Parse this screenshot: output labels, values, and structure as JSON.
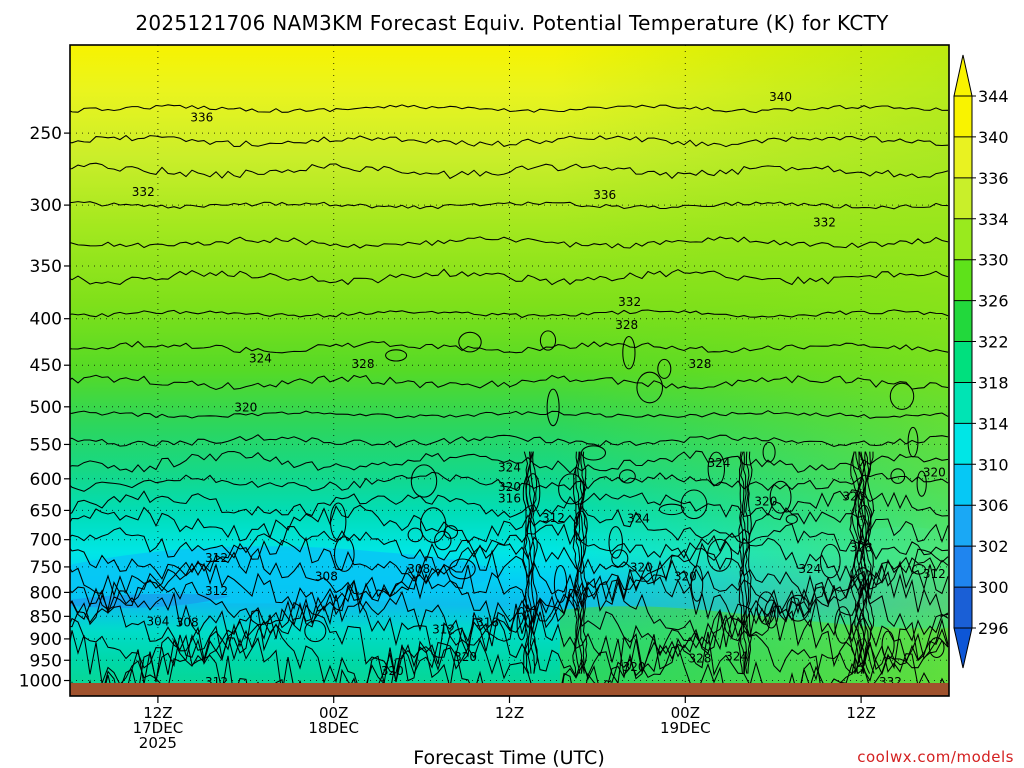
{
  "chart_data": {
    "type": "heatmap",
    "title": "2025121706 NAM3KM Forecast Equiv. Potential Temperature (K) for KCTY",
    "xlabel": "Forecast Time (UTC)",
    "ylabel": "",
    "y_axis": {
      "ticks": [
        250,
        300,
        350,
        400,
        450,
        500,
        550,
        600,
        650,
        700,
        750,
        800,
        850,
        900,
        950,
        1000
      ],
      "inverted": true,
      "scale": "log-pressure"
    },
    "x_axis": {
      "ticks": [
        {
          "hour": 6,
          "lines": [
            "12Z",
            "17DEC",
            "2025"
          ]
        },
        {
          "hour": 18,
          "lines": [
            "00Z",
            "18DEC"
          ]
        },
        {
          "hour": 30,
          "lines": [
            "12Z"
          ]
        },
        {
          "hour": 42,
          "lines": [
            "00Z",
            "19DEC"
          ]
        },
        {
          "hour": 54,
          "lines": [
            "12Z"
          ]
        }
      ],
      "xlim": [
        0,
        60
      ]
    },
    "grid": true,
    "colorbar": {
      "ticks": [
        296,
        300,
        302,
        306,
        310,
        314,
        318,
        322,
        326,
        330,
        334,
        336,
        340,
        344
      ],
      "colors": [
        "#1a5fd6",
        "#1f85ef",
        "#1aa8f5",
        "#06c8f5",
        "#00e6e6",
        "#00e4b4",
        "#00e07e",
        "#22d83c",
        "#5ee21a",
        "#99ea1e",
        "#c9ef2a",
        "#e9f221",
        "#f9f300"
      ]
    },
    "contour_labels": [
      {
        "value": "336",
        "hour": 9.0,
        "p": 240
      },
      {
        "value": "340",
        "hour": 48.5,
        "p": 228
      },
      {
        "value": "332",
        "hour": 5.0,
        "p": 290
      },
      {
        "value": "336",
        "hour": 36.5,
        "p": 292
      },
      {
        "value": "332",
        "hour": 51.5,
        "p": 313
      },
      {
        "value": "332",
        "hour": 38.2,
        "p": 383
      },
      {
        "value": "328",
        "hour": 38.0,
        "p": 406
      },
      {
        "value": "324",
        "hour": 13.0,
        "p": 442
      },
      {
        "value": "328",
        "hour": 20.0,
        "p": 448
      },
      {
        "value": "328",
        "hour": 43.0,
        "p": 448
      },
      {
        "value": "320",
        "hour": 12.0,
        "p": 500
      },
      {
        "value": "324",
        "hour": 30.0,
        "p": 582
      },
      {
        "value": "320",
        "hour": 30.0,
        "p": 612
      },
      {
        "value": "316",
        "hour": 30.0,
        "p": 630
      },
      {
        "value": "324",
        "hour": 44.3,
        "p": 576
      },
      {
        "value": "320",
        "hour": 59.0,
        "p": 590
      },
      {
        "value": "320",
        "hour": 47.5,
        "p": 635
      },
      {
        "value": "320",
        "hour": 53.5,
        "p": 627
      },
      {
        "value": "312",
        "hour": 33.0,
        "p": 662
      },
      {
        "value": "324",
        "hour": 38.8,
        "p": 663
      },
      {
        "value": "328",
        "hour": 54.0,
        "p": 713
      },
      {
        "value": "312",
        "hour": 10.0,
        "p": 732
      },
      {
        "value": "308",
        "hour": 17.5,
        "p": 767
      },
      {
        "value": "308",
        "hour": 23.8,
        "p": 753
      },
      {
        "value": "320",
        "hour": 39.0,
        "p": 750
      },
      {
        "value": "320",
        "hour": 42.0,
        "p": 767
      },
      {
        "value": "324",
        "hour": 50.5,
        "p": 753
      },
      {
        "value": "312",
        "hour": 59.0,
        "p": 763
      },
      {
        "value": "312",
        "hour": 10.0,
        "p": 796
      },
      {
        "value": "304",
        "hour": 6.0,
        "p": 860
      },
      {
        "value": "308",
        "hour": 8.0,
        "p": 862
      },
      {
        "value": "316",
        "hour": 28.5,
        "p": 862
      },
      {
        "value": "312",
        "hour": 25.5,
        "p": 878
      },
      {
        "value": "320",
        "hour": 27.0,
        "p": 941
      },
      {
        "value": "320",
        "hour": 22.0,
        "p": 975
      },
      {
        "value": "320",
        "hour": 38.5,
        "p": 965
      },
      {
        "value": "328",
        "hour": 43.0,
        "p": 945
      },
      {
        "value": "324",
        "hour": 45.5,
        "p": 940
      },
      {
        "value": "312",
        "hour": 10.0,
        "p": 1002
      },
      {
        "value": "332",
        "hour": 56.0,
        "p": 1002
      }
    ]
  },
  "footer": {
    "credit": "coolwx.com/models"
  }
}
